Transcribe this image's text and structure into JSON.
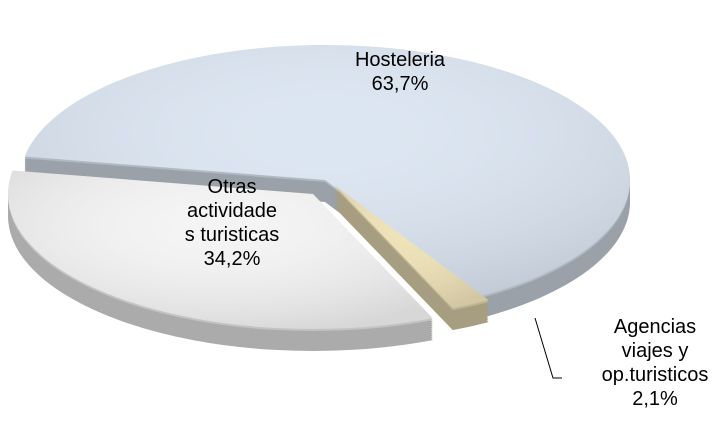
{
  "chart_data": {
    "type": "pie",
    "categories": [
      "Hosteleria",
      "Agencias viajes y op.turisticos",
      "Otras actividades turisticas"
    ],
    "values": [
      63.7,
      2.1,
      34.2
    ],
    "value_labels": [
      "63,7%",
      "2,1%",
      "34,2%"
    ],
    "colors": [
      "#dce6f2",
      "#eee2b8",
      "#f4f4f4"
    ]
  }
}
